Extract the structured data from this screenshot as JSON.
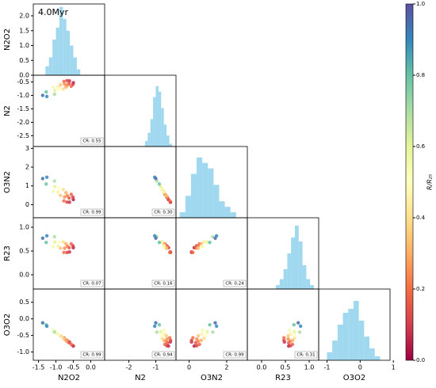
{
  "chart_data": {
    "type": "corner",
    "title": "4.0Myr",
    "variables": [
      {
        "label": "N2O2",
        "lim": [
          -1.65,
          0.4
        ],
        "xticks": [
          -1.5,
          {
            "value": -1,
            "label": "-1.0"
          },
          -0.5,
          {
            "value": 0,
            "label": "0.0"
          }
        ]
      },
      {
        "label": "N2",
        "lim": [
          -2.9,
          -0.25
        ],
        "xticks": [
          -2,
          -1
        ],
        "yticks": [
          -0.5,
          {
            "value": -1,
            "label": "-1.0"
          },
          -1.5,
          {
            "value": -2,
            "label": "-2.0"
          },
          -2.5
        ]
      },
      {
        "label": "O3N2",
        "lim": [
          -0.7,
          3.1
        ],
        "xticks": [
          0,
          2
        ],
        "yticks": [
          0,
          1,
          2,
          3
        ]
      },
      {
        "label": "R23",
        "lim": [
          -0.3,
          1.2
        ],
        "xticks": [
          {
            "value": 0,
            "label": "0.0"
          },
          0.5,
          {
            "value": 1,
            "label": "1.0"
          }
        ],
        "yticks": [
          {
            "value": 0,
            "label": "0.0"
          },
          0.5,
          {
            "value": 1,
            "label": "1.0"
          }
        ]
      },
      {
        "label": "O3O2",
        "lim": [
          -1.25,
          0.9
        ],
        "xticks": [
          -1,
          0,
          1
        ],
        "yticks": [
          {
            "value": -1,
            "label": "-1.0"
          },
          -0.5,
          {
            "value": 0,
            "label": "0.0"
          },
          0.5
        ]
      }
    ],
    "hist_color": "#9fd8ef",
    "diagonal": [
      {
        "bins": [
          -1.3,
          -1.2,
          -1.1,
          -1.0,
          -0.9,
          -0.8,
          -0.7,
          -0.6,
          -0.5,
          -0.4,
          -0.3
        ],
        "counts": [
          0.3,
          0.6,
          1.2,
          1.6,
          2.3,
          1.9,
          1.5,
          1.0,
          0.6,
          0.2
        ],
        "ylim": [
          0,
          2.4
        ],
        "yticks": [
          {
            "value": 0,
            "label": "0.0"
          },
          0.5,
          {
            "value": 1,
            "label": "1.0"
          },
          1.5,
          {
            "value": 2,
            "label": "2.0"
          }
        ]
      },
      {
        "bins": [
          -1.4,
          -1.3,
          -1.2,
          -1.1,
          -1.0,
          -0.9,
          -0.8,
          -0.7,
          -0.6,
          -0.5,
          -0.4
        ],
        "counts": [
          0.2,
          0.5,
          1.0,
          1.8,
          2.2,
          2.0,
          1.4,
          0.8,
          0.4,
          0.1
        ],
        "ylim": [
          0,
          2.6
        ]
      },
      {
        "bins": [
          -0.5,
          -0.2,
          0.1,
          0.4,
          0.7,
          1.0,
          1.3,
          1.6,
          1.9,
          2.2,
          2.5
        ],
        "counts": [
          0.1,
          0.4,
          0.8,
          1.1,
          1.0,
          0.9,
          0.6,
          0.3,
          0.2,
          0.1
        ],
        "ylim": [
          0,
          1.3
        ]
      },
      {
        "bins": [
          0.3,
          0.38,
          0.46,
          0.54,
          0.62,
          0.7,
          0.78,
          0.86,
          0.94,
          1.02,
          1.1
        ],
        "counts": [
          0.2,
          0.5,
          1.0,
          1.8,
          2.6,
          3.2,
          2.4,
          1.2,
          0.5,
          0.2
        ],
        "ylim": [
          0,
          3.6
        ]
      },
      {
        "bins": [
          -1.0,
          -0.84,
          -0.68,
          -0.52,
          -0.36,
          -0.2,
          -0.04,
          0.12,
          0.28,
          0.44,
          0.6
        ],
        "counts": [
          0.2,
          0.5,
          0.9,
          1.2,
          1.3,
          1.5,
          1.0,
          0.6,
          0.3,
          0.1
        ],
        "ylim": [
          0,
          1.8
        ]
      }
    ],
    "points": [
      {
        "name": "N2O2",
        "values": [
          -0.5,
          -0.61,
          -0.51,
          -0.68,
          -0.62,
          -0.56,
          -0.77,
          -0.67,
          -0.75,
          -0.71,
          -0.87,
          -0.79,
          -0.94,
          -0.91,
          -1.08,
          -1.03,
          -1.04,
          -1.28,
          -1.26,
          -1.38
        ]
      },
      {
        "name": "N2",
        "values": [
          -0.53,
          -0.46,
          -0.59,
          -0.45,
          -0.56,
          -0.66,
          -0.48,
          -0.61,
          -0.58,
          -0.69,
          -0.61,
          -0.76,
          -0.69,
          -0.79,
          -0.7,
          -0.82,
          -0.96,
          -0.87,
          -1.04,
          -1.0
        ]
      },
      {
        "name": "O3N2",
        "values": [
          0.27,
          0.13,
          0.4,
          0.13,
          0.35,
          0.55,
          0.2,
          0.47,
          0.41,
          0.64,
          0.49,
          0.8,
          0.67,
          0.88,
          0.71,
          0.96,
          1.26,
          1.1,
          1.46,
          1.39
        ]
      },
      {
        "name": "R23",
        "values": [
          0.57,
          0.48,
          0.61,
          0.47,
          0.57,
          0.65,
          0.47,
          0.6,
          0.56,
          0.65,
          0.56,
          0.69,
          0.61,
          0.69,
          0.59,
          0.69,
          0.8,
          0.68,
          0.82,
          0.77
        ]
      },
      {
        "name": "O3O2",
        "values": [
          -0.82,
          -0.7,
          -0.81,
          -0.65,
          -0.72,
          -0.77,
          -0.57,
          -0.68,
          -0.61,
          -0.65,
          -0.51,
          -0.59,
          -0.46,
          -0.49,
          -0.34,
          -0.39,
          -0.4,
          -0.18,
          -0.22,
          -0.12
        ]
      }
    ],
    "color_values": [
      0.05,
      0.08,
      0.1,
      0.12,
      0.15,
      0.18,
      0.2,
      0.22,
      0.25,
      0.3,
      0.35,
      0.4,
      0.45,
      0.5,
      0.55,
      0.6,
      0.7,
      0.8,
      0.9,
      0.95
    ],
    "panel_notes": [
      "CR: 0.55",
      "CR: 0.99",
      "CR: 0.30",
      "CR: 0.07",
      "CR: 0.16",
      "CR: 0.24",
      "CR: 0.99",
      "CR: 0.94",
      "CR: 0.99",
      "CR: 0.31"
    ],
    "colorbar": {
      "label": "R/R₂₅",
      "lim": [
        0,
        1
      ],
      "ticks": [
        {
          "value": 0,
          "label": "0.0"
        },
        0.2,
        0.4,
        0.6,
        0.8,
        {
          "value": 1,
          "label": "1.0"
        }
      ],
      "colormap": [
        "#9e0142",
        "#d53e4f",
        "#f46d43",
        "#fdae61",
        "#fee08b",
        "#ffffbf",
        "#e6f598",
        "#abdda4",
        "#66c2a5",
        "#3288bd",
        "#5e4fa2"
      ]
    }
  }
}
